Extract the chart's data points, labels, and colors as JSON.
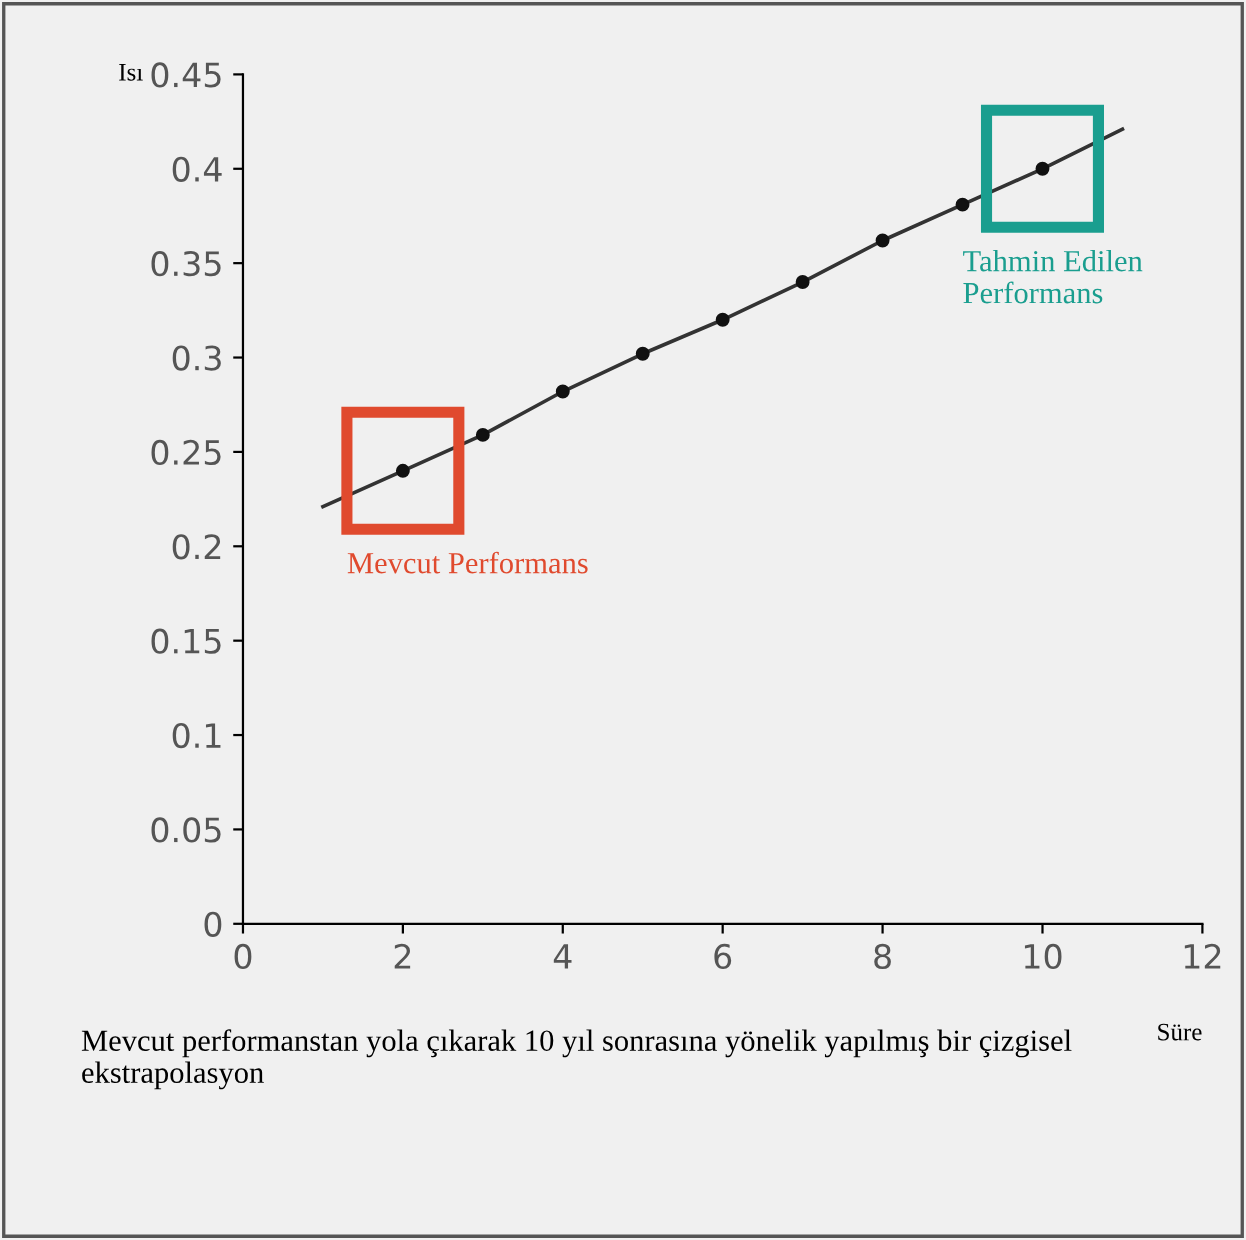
{
  "chart_data": {
    "type": "line",
    "xlabel": "Süre",
    "ylabel": "Isı",
    "series": [
      {
        "color": "#333333",
        "x": [
          1,
          2,
          3,
          4,
          5,
          6,
          7,
          8,
          9,
          10,
          11
        ],
        "values": [
          0.221,
          0.24,
          0.259,
          0.282,
          0.302,
          0.32,
          0.34,
          0.362,
          0.381,
          0.4,
          0.421
        ]
      },
      {
        "type": "scatter",
        "color": "#111111",
        "x": [
          2,
          3,
          4,
          5,
          6,
          7,
          8,
          9,
          10
        ],
        "values": [
          0.24,
          0.259,
          0.282,
          0.302,
          0.32,
          0.34,
          0.362,
          0.381,
          0.4
        ]
      }
    ],
    "xlim": [
      0,
      12
    ],
    "ylim": [
      0,
      0.45
    ],
    "xticks": [
      0,
      2,
      4,
      6,
      8,
      10,
      12
    ],
    "yticks": [
      0,
      0.05,
      0.1,
      0.15,
      0.2,
      0.25,
      0.3,
      0.35,
      0.4,
      0.45
    ],
    "grid": false,
    "legend": false,
    "annotations": [
      {
        "text": "Mevcut Performans",
        "x": 2,
        "y": 0.24
      },
      {
        "text": "Tahmin Edilen Performans",
        "x": 10,
        "y": 0.4
      },
      "Mevcut performanstan yola çıkarak 10 yıl sonrasına yönelik yapılmış bir çizgisel ekstrapolasyon"
    ]
  }
}
